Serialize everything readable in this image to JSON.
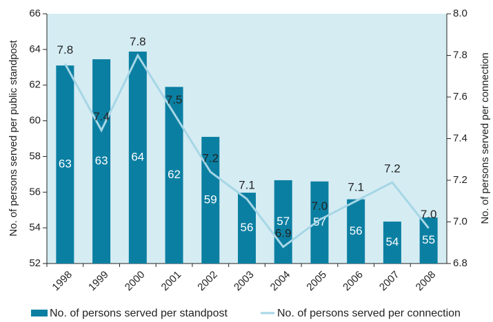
{
  "chart_data": {
    "type": "bar-line",
    "categories": [
      "1998",
      "1999",
      "2000",
      "2001",
      "2002",
      "2003",
      "2004",
      "2005",
      "2006",
      "2007",
      "2008"
    ],
    "series": [
      {
        "name": "No. of persons served per standpost",
        "color": "#0b7fa2",
        "type": "bar",
        "values": [
          63.1,
          63.45,
          63.88,
          61.9,
          59.1,
          55.97,
          56.67,
          56.6,
          55.6,
          54.35,
          54.58
        ],
        "value_labels": [
          "63",
          "63",
          "64",
          "62",
          "59",
          "56",
          "57",
          "57",
          "56",
          "54",
          "55"
        ]
      },
      {
        "name": "No. of persons served per connection",
        "color": "#a6d6e6",
        "type": "line",
        "axis": "y2",
        "values": [
          7.76,
          7.44,
          7.8,
          7.52,
          7.24,
          7.11,
          6.88,
          7.01,
          7.1,
          7.19,
          6.97
        ],
        "value_labels": [
          "7.8",
          "7.4",
          "7.8",
          "7.5",
          "7.2",
          "7.1",
          "6.9",
          "7.0",
          "7.1",
          "7.2",
          "7.0"
        ]
      }
    ],
    "ylabel": "No. of persons served per public standpost",
    "y2label": "No. of persons served per connection",
    "ylim": [
      52,
      66
    ],
    "yticks": [
      52,
      54,
      56,
      58,
      60,
      62,
      64,
      66
    ],
    "y2lim": [
      6.8,
      8.0
    ],
    "y2ticks": [
      6.8,
      {
        "value": 7.0,
        "label": "7.0"
      },
      7.2,
      7.4,
      7.6,
      7.8,
      {
        "value": 8.0,
        "label": "8.0"
      }
    ],
    "background": "#d5ecf3"
  }
}
